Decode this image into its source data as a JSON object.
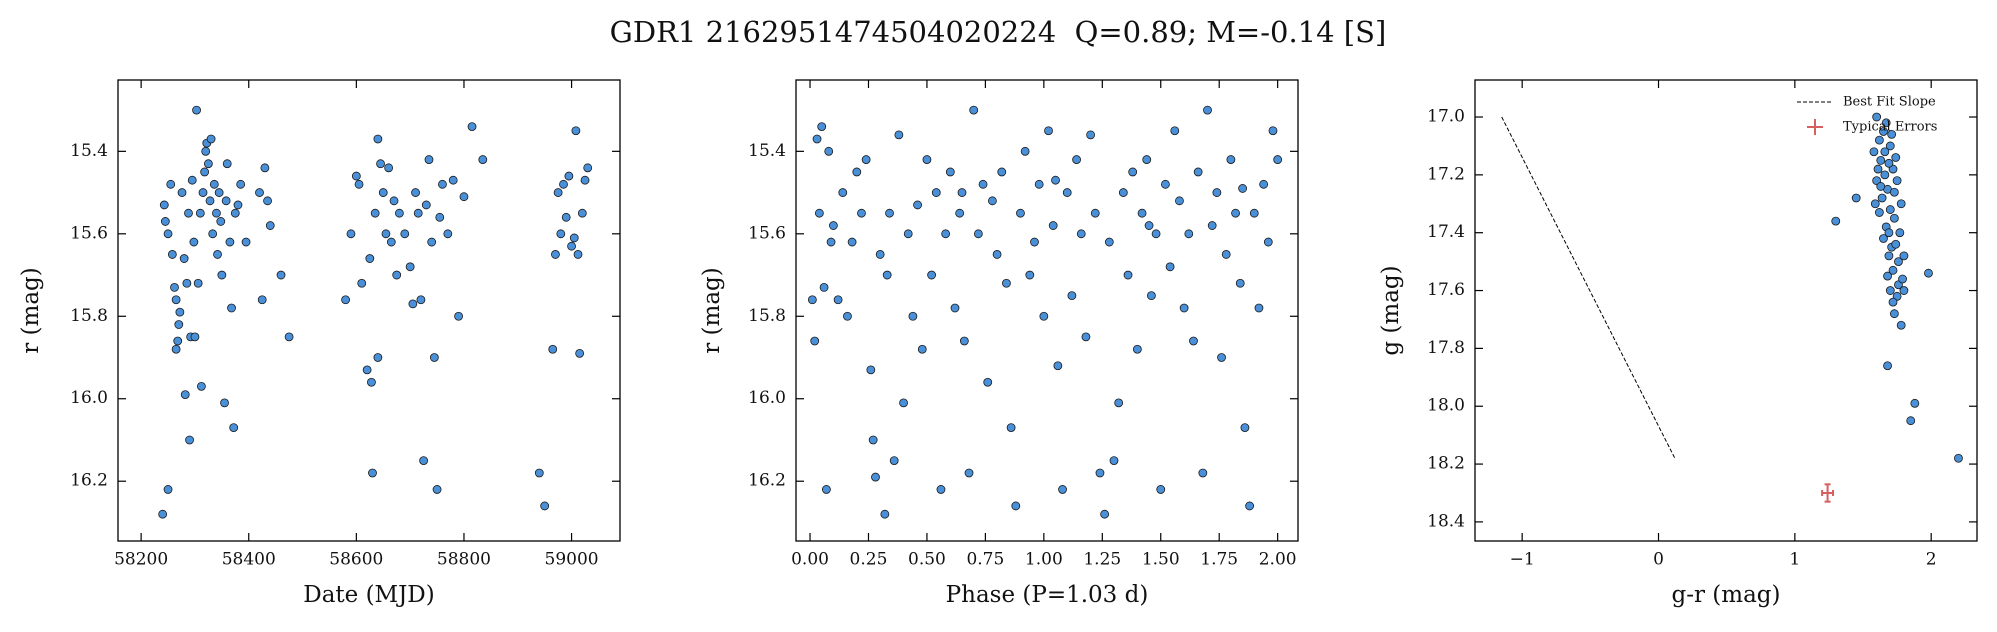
{
  "title": "GDR1 2162951474504020224  Q=0.89; M=-0.14 [S]",
  "chart_data": [
    {
      "type": "scatter",
      "xlabel": "Date (MJD)",
      "ylabel": "r (mag)",
      "xlim": [
        58157,
        59090
      ],
      "ylim": [
        16.345,
        15.227
      ],
      "xticks": [
        58200,
        58400,
        58600,
        58800,
        59000
      ],
      "yticks": [
        15.4,
        15.6,
        15.8,
        {
          "value": 16,
          "label": "16.0"
        },
        16.2
      ],
      "color": "#4a90d9",
      "edgecolor": "#1a1a1a",
      "x": [
        58243,
        58245,
        58250,
        58255,
        58258,
        58262,
        58265,
        58268,
        58270,
        58272,
        58276,
        58280,
        58282,
        58285,
        58288,
        58290,
        58292,
        58295,
        58298,
        58300,
        58303,
        58306,
        58310,
        58312,
        58315,
        58318,
        58320,
        58322,
        58325,
        58328,
        58330,
        58333,
        58336,
        58340,
        58342,
        58345,
        58348,
        58350,
        58355,
        58358,
        58360,
        58365,
        58368,
        58372,
        58375,
        58380,
        58385,
        58395,
        58420,
        58425,
        58430,
        58435,
        58440,
        58460,
        58475,
        58250,
        58240,
        58265,
        58580,
        58590,
        58600,
        58605,
        58610,
        58620,
        58625,
        58628,
        58630,
        58635,
        58640,
        58645,
        58650,
        58655,
        58660,
        58665,
        58670,
        58675,
        58680,
        58690,
        58700,
        58705,
        58710,
        58715,
        58720,
        58725,
        58730,
        58735,
        58740,
        58745,
        58750,
        58755,
        58760,
        58770,
        58780,
        58790,
        58800,
        58815,
        58835,
        58640,
        58940,
        58950,
        58965,
        58970,
        58975,
        58980,
        58985,
        58990,
        58995,
        59000,
        59005,
        59008,
        59012,
        59015,
        59020,
        59025,
        59030
      ],
      "values": [
        15.53,
        15.57,
        15.6,
        15.48,
        15.65,
        15.73,
        15.76,
        15.86,
        15.82,
        15.79,
        15.5,
        15.66,
        15.99,
        15.72,
        15.55,
        16.1,
        15.85,
        15.47,
        15.62,
        15.85,
        15.3,
        15.72,
        15.55,
        15.97,
        15.5,
        15.45,
        15.4,
        15.38,
        15.43,
        15.52,
        15.37,
        15.6,
        15.48,
        15.55,
        15.65,
        15.5,
        15.57,
        15.7,
        16.01,
        15.52,
        15.43,
        15.62,
        15.78,
        16.07,
        15.55,
        15.53,
        15.48,
        15.62,
        15.5,
        15.76,
        15.44,
        15.52,
        15.58,
        15.7,
        15.85,
        16.22,
        16.28,
        15.88,
        15.76,
        15.6,
        15.46,
        15.48,
        15.72,
        15.93,
        15.66,
        15.96,
        16.18,
        15.55,
        15.37,
        15.43,
        15.5,
        15.6,
        15.44,
        15.62,
        15.52,
        15.7,
        15.55,
        15.6,
        15.68,
        15.77,
        15.5,
        15.55,
        15.76,
        16.15,
        15.53,
        15.42,
        15.62,
        15.9,
        16.22,
        15.56,
        15.48,
        15.6,
        15.47,
        15.8,
        15.51,
        15.34,
        15.42,
        15.9,
        16.18,
        16.26,
        15.88,
        15.65,
        15.5,
        15.6,
        15.48,
        15.56,
        15.46,
        15.63,
        15.61,
        15.35,
        15.65,
        15.89,
        15.55,
        15.47,
        15.44
      ]
    },
    {
      "type": "scatter",
      "xlabel": "Phase (P=1.03 d)",
      "ylabel": "r (mag)",
      "xlim": [
        -0.06,
        2.087
      ],
      "ylim": [
        16.345,
        15.227
      ],
      "xticks": [
        {
          "value": 0,
          "label": "0.00"
        },
        0.25,
        {
          "value": 0.5,
          "label": "0.50"
        },
        0.75,
        {
          "value": 1,
          "label": "1.00"
        },
        1.25,
        {
          "value": 1.5,
          "label": "1.50"
        },
        1.75,
        {
          "value": 2,
          "label": "2.00"
        }
      ],
      "yticks": [
        15.4,
        15.6,
        15.8,
        {
          "value": 16,
          "label": "16.0"
        },
        16.2
      ],
      "color": "#4a90d9",
      "edgecolor": "#1a1a1a",
      "x": [
        0.01,
        0.02,
        0.03,
        0.04,
        0.05,
        0.06,
        0.07,
        0.08,
        0.1,
        0.12,
        0.14,
        0.16,
        0.18,
        0.2,
        0.22,
        0.24,
        0.26,
        0.27,
        0.28,
        0.3,
        0.32,
        0.34,
        0.36,
        0.38,
        0.4,
        0.42,
        0.44,
        0.46,
        0.48,
        0.5,
        0.52,
        0.54,
        0.56,
        0.58,
        0.6,
        0.62,
        0.64,
        0.66,
        0.68,
        0.7,
        0.72,
        0.74,
        0.76,
        0.78,
        0.8,
        0.82,
        0.84,
        0.86,
        0.88,
        0.9,
        0.92,
        0.94,
        0.96,
        0.98,
        1.0,
        1.02,
        1.04,
        1.06,
        1.08,
        1.1,
        1.12,
        1.14,
        1.16,
        1.18,
        1.2,
        1.22,
        1.24,
        1.26,
        1.28,
        1.3,
        1.32,
        1.34,
        1.36,
        1.38,
        1.4,
        1.42,
        1.44,
        1.46,
        1.48,
        1.5,
        1.52,
        1.54,
        1.56,
        1.58,
        1.6,
        1.62,
        1.64,
        1.66,
        1.68,
        1.7,
        1.72,
        1.74,
        1.76,
        1.78,
        1.8,
        1.82,
        1.84,
        1.86,
        1.88,
        1.9,
        1.92,
        1.94,
        1.96,
        1.98,
        2.0,
        0.09,
        0.33,
        0.65,
        1.05,
        1.45,
        1.85
      ],
      "values": [
        15.76,
        15.86,
        15.37,
        15.55,
        15.34,
        15.73,
        16.22,
        15.4,
        15.58,
        15.76,
        15.5,
        15.8,
        15.62,
        15.45,
        15.55,
        15.42,
        15.93,
        16.1,
        16.19,
        15.65,
        16.28,
        15.55,
        16.15,
        15.36,
        16.01,
        15.6,
        15.8,
        15.53,
        15.88,
        15.42,
        15.7,
        15.5,
        16.22,
        15.6,
        15.45,
        15.78,
        15.55,
        15.86,
        16.18,
        15.3,
        15.6,
        15.48,
        15.96,
        15.52,
        15.65,
        15.45,
        15.72,
        16.07,
        16.26,
        15.55,
        15.4,
        15.7,
        15.62,
        15.48,
        15.8,
        15.35,
        15.58,
        15.92,
        16.22,
        15.5,
        15.75,
        15.42,
        15.6,
        15.85,
        15.36,
        15.55,
        16.18,
        16.28,
        15.62,
        16.15,
        16.01,
        15.5,
        15.7,
        15.45,
        15.88,
        15.55,
        15.42,
        15.75,
        15.6,
        16.22,
        15.48,
        15.68,
        15.35,
        15.52,
        15.78,
        15.6,
        15.86,
        15.45,
        16.18,
        15.3,
        15.58,
        15.5,
        15.9,
        15.65,
        15.42,
        15.55,
        15.72,
        16.07,
        16.26,
        15.55,
        15.78,
        15.48,
        15.62,
        15.35,
        15.42,
        15.62,
        15.7,
        15.5,
        15.47,
        15.58,
        15.49
      ]
    },
    {
      "type": "scatter",
      "xlabel": "g-r (mag)",
      "ylabel": "g (mag)",
      "xlim": [
        -1.346,
        2.336
      ],
      "ylim": [
        18.466,
        16.872
      ],
      "xticks": [
        {
          "value": -1,
          "label": "−1"
        },
        0,
        1,
        2
      ],
      "yticks": [
        {
          "value": 17,
          "label": "17.0"
        },
        17.2,
        17.4,
        17.6,
        17.8,
        {
          "value": 18,
          "label": "18.0"
        },
        18.2,
        18.4
      ],
      "color": "#4a90d9",
      "edgecolor": "#1a1a1a",
      "legend": "upper right",
      "x": [
        1.6,
        1.62,
        1.65,
        1.58,
        1.63,
        1.7,
        1.66,
        1.6,
        1.72,
        1.68,
        1.64,
        1.75,
        1.62,
        1.7,
        1.67,
        1.73,
        1.78,
        1.65,
        1.71,
        1.69,
        1.74,
        1.76,
        1.72,
        1.68,
        1.8,
        1.7,
        1.75,
        1.78,
        1.73,
        1.66,
        1.74,
        1.61,
        1.69,
        1.77,
        1.59,
        1.67,
        1.71,
        1.63,
        1.73,
        1.69,
        1.76,
        1.72,
        1.79,
        1.3,
        1.45,
        1.68,
        1.85,
        1.88,
        1.98,
        2.2,
        1.8
      ],
      "values": [
        17.0,
        17.08,
        17.05,
        17.12,
        17.15,
        17.1,
        17.2,
        17.22,
        17.18,
        17.25,
        17.28,
        17.22,
        17.33,
        17.32,
        17.38,
        17.35,
        17.3,
        17.42,
        17.45,
        17.48,
        17.44,
        17.5,
        17.53,
        17.55,
        17.48,
        17.6,
        17.62,
        17.72,
        17.68,
        17.12,
        17.14,
        17.18,
        17.4,
        17.4,
        17.3,
        17.02,
        17.06,
        17.24,
        17.26,
        17.16,
        17.58,
        17.64,
        17.56,
        17.36,
        17.28,
        17.86,
        18.05,
        17.99,
        17.54,
        18.18,
        17.6
      ],
      "fit": {
        "name": "Best Fit Slope",
        "color": "#000000",
        "x": [
          -1.15,
          0.12
        ],
        "values": [
          17.0,
          18.18
        ]
      },
      "errors": {
        "name": "Typical Errors",
        "color": "#d65f5f",
        "x": [
          1.24
        ],
        "values": [
          18.3
        ],
        "xerr": [
          0.04
        ],
        "yerr": [
          0.03
        ]
      }
    }
  ]
}
